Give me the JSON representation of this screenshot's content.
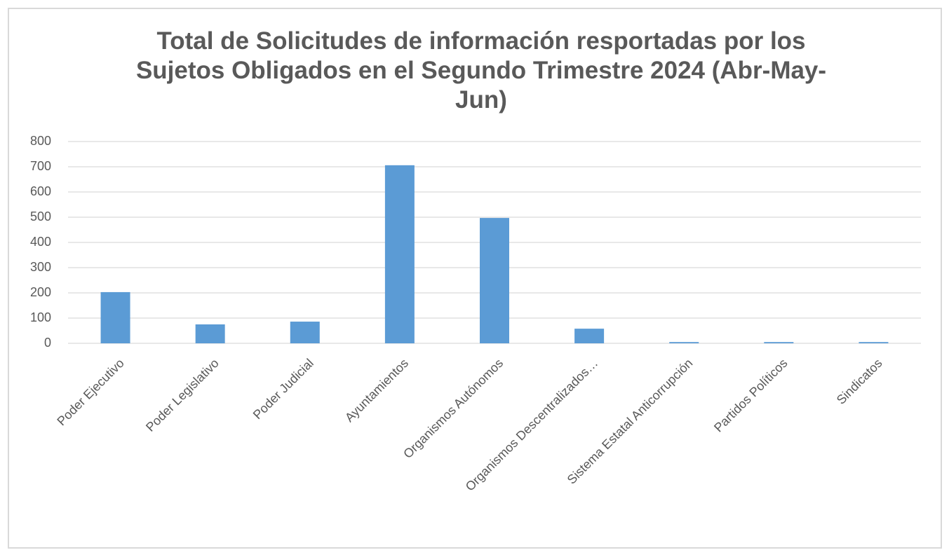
{
  "chart_data": {
    "type": "bar",
    "title": "Total de Solicitudes de información resportadas por los Sujetos Obligados en el Segundo Trimestre 2024 (Abr-May-Jun)",
    "categories": [
      "Poder Ejecutivo",
      "Poder Legislativo",
      "Poder Judicial",
      "Ayuntamientos",
      "Organismos Autónomos",
      "Organismos Descentralizados…",
      "Sistema Estatal Anticorrupción",
      "Partidos Políticos",
      "Sindicatos"
    ],
    "values": [
      203,
      75,
      86,
      706,
      497,
      58,
      5,
      5,
      5
    ],
    "color": "#5b9bd5",
    "ylim": [
      0,
      800
    ],
    "yticks": [
      0,
      100,
      200,
      300,
      400,
      500,
      600,
      700,
      800
    ],
    "grid": true
  }
}
